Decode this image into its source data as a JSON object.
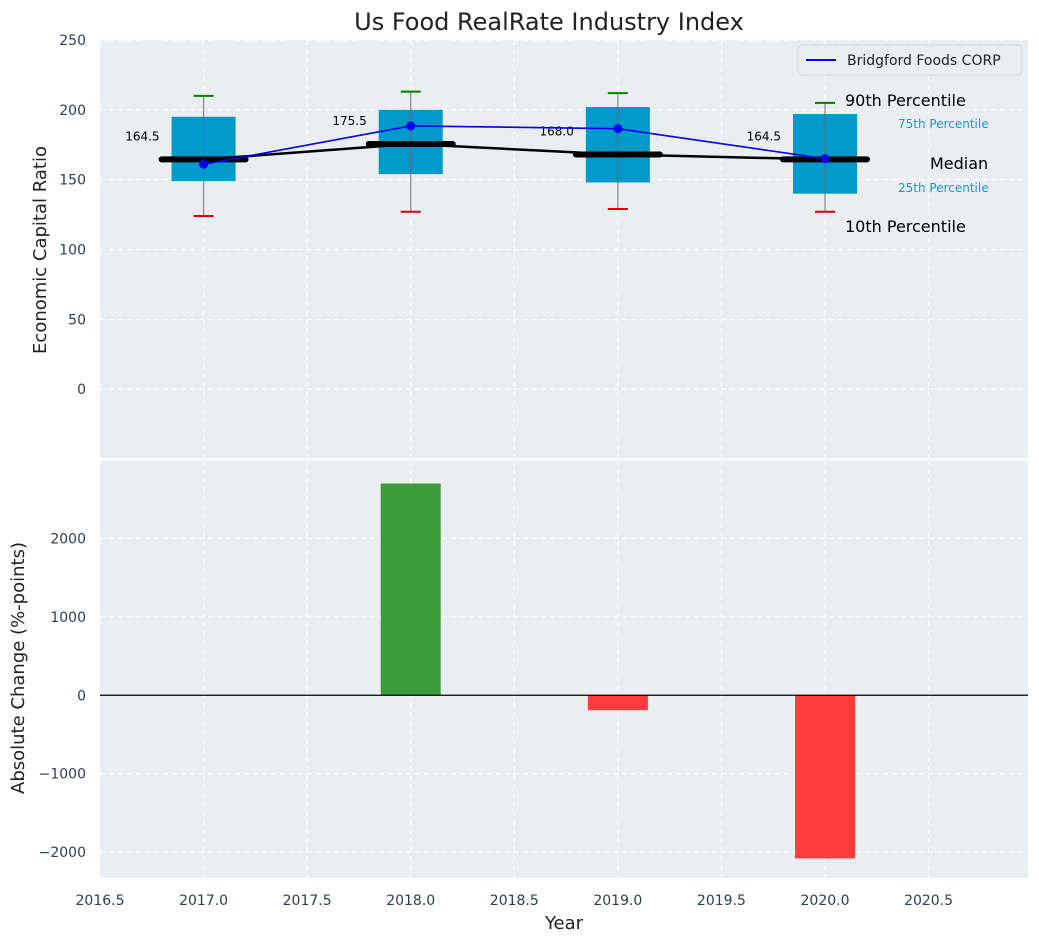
{
  "chart_data": [
    {
      "type": "box",
      "title": "Us Food RealRate Industry Index",
      "ylabel": "Economic Capital Ratio",
      "ylim": [
        -50,
        250
      ],
      "yticks": [
        0,
        50,
        100,
        150,
        200,
        250
      ],
      "x": [
        2017,
        2018,
        2019,
        2020
      ],
      "percentile_10": [
        124,
        127,
        129,
        127
      ],
      "percentile_25": [
        149,
        154,
        148,
        140
      ],
      "median": [
        164.5,
        175.5,
        168.0,
        164.5
      ],
      "percentile_75": [
        195,
        200,
        202,
        197
      ],
      "percentile_90": [
        210,
        213,
        212,
        205
      ],
      "median_labels": [
        "164.5",
        "175.5",
        "168.0",
        "164.5"
      ],
      "series": [
        {
          "name": "Bridgford Foods CORP",
          "color": "#0000ee",
          "values": [
            161,
            188.5,
            186.5,
            165
          ]
        }
      ],
      "key_labels": {
        "p90": "90th Percentile",
        "p75": "75th Percentile",
        "median": "Median",
        "p25": "25th Percentile",
        "p10": "10th Percentile"
      },
      "legend_position": "top-right",
      "colors": {
        "box": "#0099cc",
        "whisker_high": "#008000",
        "whisker_low": "#e00000",
        "median": "#000000"
      },
      "grid": true
    },
    {
      "type": "bar",
      "xlabel": "Year",
      "ylabel": "Absolute Change (%-points)",
      "ylim": [
        -2330,
        3000
      ],
      "yticks": [
        -2000,
        -1000,
        0,
        1000,
        2000
      ],
      "yticklabels": [
        "−2000",
        "−1000",
        "0",
        "1000",
        "2000"
      ],
      "x": [
        2018,
        2019,
        2020
      ],
      "values": [
        2700,
        -190,
        -2080
      ],
      "xlim": [
        2016.5,
        2020.98
      ],
      "xticks": [
        2016.5,
        2017.0,
        2017.5,
        2018.0,
        2018.5,
        2019.0,
        2019.5,
        2020.0,
        2020.5
      ],
      "xticklabels": [
        "2016.5",
        "2017.0",
        "2017.5",
        "2018.0",
        "2018.5",
        "2019.0",
        "2019.5",
        "2020.0",
        "2020.5"
      ],
      "colors": {
        "positive": "#3c9c3c",
        "negative": "#ff3c3c"
      },
      "grid": true
    }
  ]
}
